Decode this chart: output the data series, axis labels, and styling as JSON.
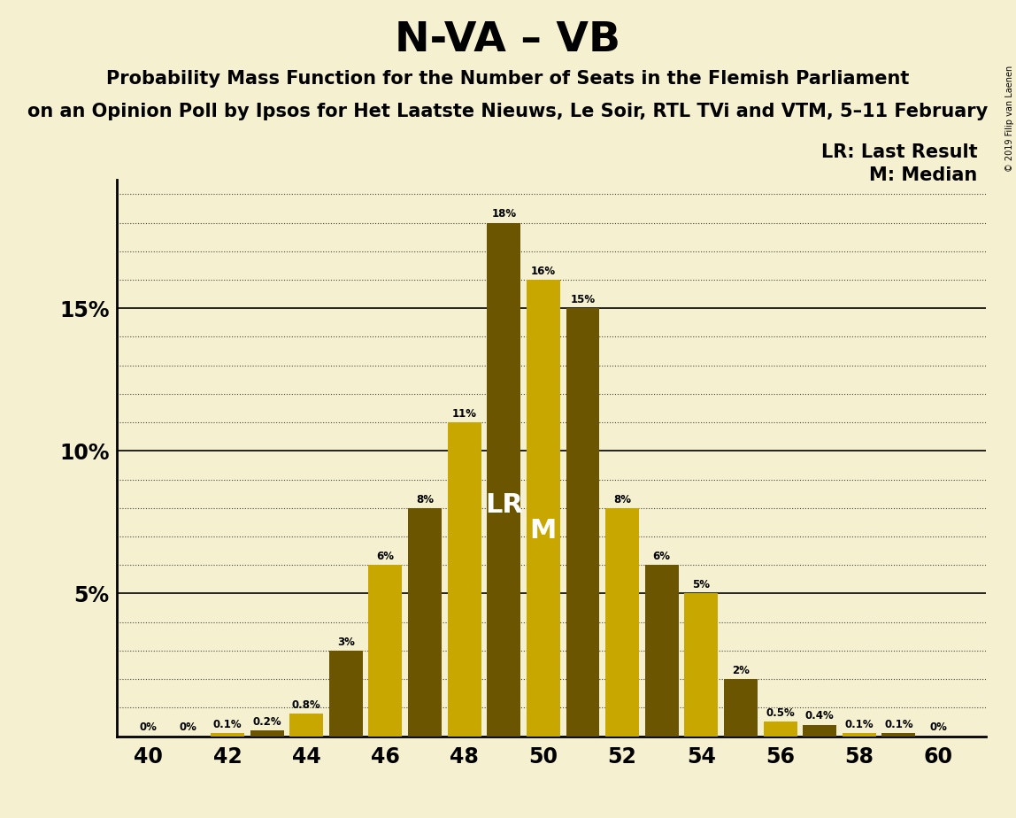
{
  "title": "N-VA – VB",
  "subtitle1": "Probability Mass Function for the Number of Seats in the Flemish Parliament",
  "subtitle2": "on an Opinion Poll by Ipsos for Het Laatste Nieuws, Le Soir, RTL TVi and VTM, 5–11 February",
  "copyright": "© 2019 Filip van Laenen",
  "legend_lr": "LR: Last Result",
  "legend_m": "M: Median",
  "background_color": "#f5f0d0",
  "seats": [
    40,
    41,
    42,
    43,
    44,
    45,
    46,
    47,
    48,
    49,
    50,
    51,
    52,
    53,
    54,
    55,
    56,
    57,
    58,
    59,
    60
  ],
  "values": [
    0.0,
    0.0,
    0.1,
    0.2,
    0.8,
    3.0,
    6.0,
    8.0,
    11.0,
    18.0,
    16.0,
    15.0,
    8.0,
    6.0,
    5.0,
    2.0,
    0.5,
    0.4,
    0.1,
    0.1,
    0.0
  ],
  "labels": [
    "0%",
    "0%",
    "0.1%",
    "0.2%",
    "0.8%",
    "3%",
    "6%",
    "8%",
    "11%",
    "18%",
    "16%",
    "15%",
    "8%",
    "6%",
    "5%",
    "2%",
    "0.5%",
    "0.4%",
    "0.1%",
    "0.1%",
    "0%"
  ],
  "bar_colors": [
    "#c8a800",
    "#6b5500",
    "#c8a800",
    "#6b5500",
    "#c8a800",
    "#6b5500",
    "#c8a800",
    "#6b5500",
    "#c8a800",
    "#6b5500",
    "#c8a800",
    "#6b5500",
    "#c8a800",
    "#6b5500",
    "#c8a800",
    "#6b5500",
    "#c8a800",
    "#6b5500",
    "#c8a800",
    "#6b5500",
    "#c8a800"
  ],
  "lr_seat": 49,
  "median_seat": 50,
  "lr_label": "LR",
  "median_label": "M",
  "ylim_max": 19.5,
  "xticks": [
    40,
    42,
    44,
    46,
    48,
    50,
    52,
    54,
    56,
    58,
    60
  ],
  "bar_width": 0.85
}
